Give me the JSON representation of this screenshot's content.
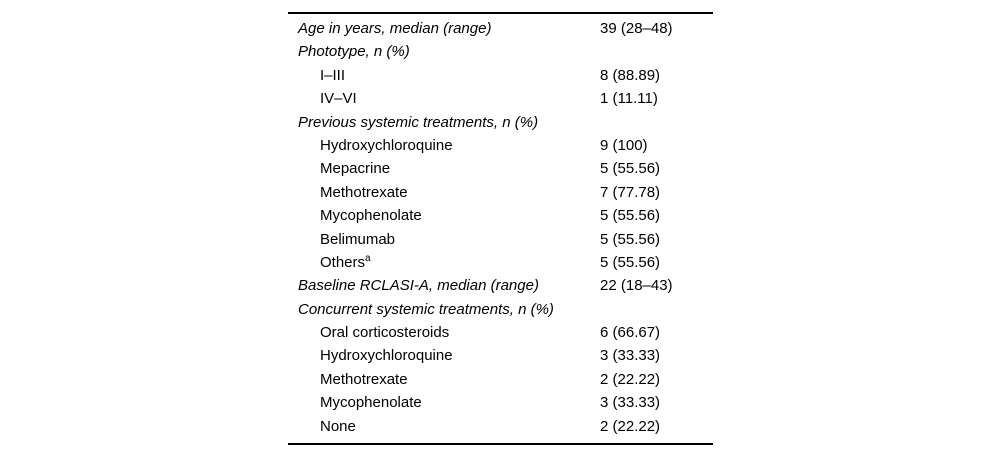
{
  "page": {
    "background_color": "#ffffff",
    "text_color": "#000000",
    "rule_color": "#000000"
  },
  "table": {
    "rows": [
      {
        "style": "category",
        "label": "Age in years, median (range)",
        "value": "39 (28–48)"
      },
      {
        "style": "category",
        "label": "Phototype, n (%)",
        "value": ""
      },
      {
        "style": "item",
        "label": "I–III",
        "value": "8 (88.89)"
      },
      {
        "style": "item",
        "label": "IV–VI",
        "value": "1 (11.11)"
      },
      {
        "style": "category",
        "label": "Previous systemic treatments, n (%)",
        "value": ""
      },
      {
        "style": "item",
        "label": "Hydroxychloroquine",
        "value": "9 (100)"
      },
      {
        "style": "item",
        "label": "Mepacrine",
        "value": "5 (55.56)"
      },
      {
        "style": "item",
        "label": "Methotrexate",
        "value": "7 (77.78)"
      },
      {
        "style": "item",
        "label": "Mycophenolate",
        "value": "5 (55.56)"
      },
      {
        "style": "item",
        "label": "Belimumab",
        "value": "5 (55.56)"
      },
      {
        "style": "item",
        "label": "Others",
        "sup": "a",
        "value": "5 (55.56)"
      },
      {
        "style": "category",
        "label": "Baseline RCLASI-A, median (range)",
        "value": "22 (18–43)"
      },
      {
        "style": "category",
        "label": "Concurrent systemic treatments, n (%)",
        "value": ""
      },
      {
        "style": "item",
        "label": "Oral corticosteroids",
        "value": "6 (66.67)"
      },
      {
        "style": "item",
        "label": "Hydroxychloroquine",
        "value": "3 (33.33)"
      },
      {
        "style": "item",
        "label": "Methotrexate",
        "value": "2 (22.22)"
      },
      {
        "style": "item",
        "label": "Mycophenolate",
        "value": "3 (33.33)"
      },
      {
        "style": "item",
        "label": "None",
        "value": "2 (22.22)"
      }
    ]
  }
}
